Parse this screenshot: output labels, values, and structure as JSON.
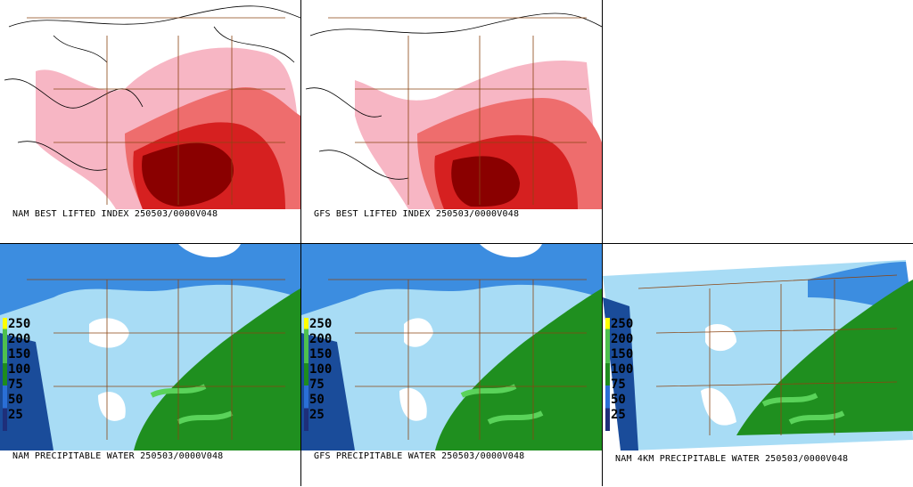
{
  "panels": {
    "nam_li": {
      "caption": "NAM BEST LIFTED INDEX 250503/0000V048"
    },
    "gfs_li": {
      "caption": "GFS BEST LIFTED INDEX 250503/0000V048"
    },
    "nam_pw": {
      "caption": "NAM PRECIPITABLE WATER 250503/0000V048"
    },
    "gfs_pw": {
      "caption": "GFS PRECIPITABLE WATER 250503/0000V048"
    },
    "nam4km_pw": {
      "caption": "NAM 4KM PRECIPITABLE WATER 250503/0000V048"
    }
  },
  "legend": {
    "labels": [
      "250",
      "200",
      "150",
      "100",
      "75",
      "50",
      "25"
    ]
  },
  "colors": {
    "li_light": "#f7b6c4",
    "li_mid": "#ee6d6d",
    "li_strong": "#d62020",
    "li_max": "#8a0000",
    "pw_light": "#a8dcf5",
    "pw_mid": "#3c8de0",
    "pw_dark": "#1a4c9a",
    "pw_green": "#1f8f1f",
    "pw_bright_green": "#5ad35a",
    "border": "#8b4513"
  }
}
